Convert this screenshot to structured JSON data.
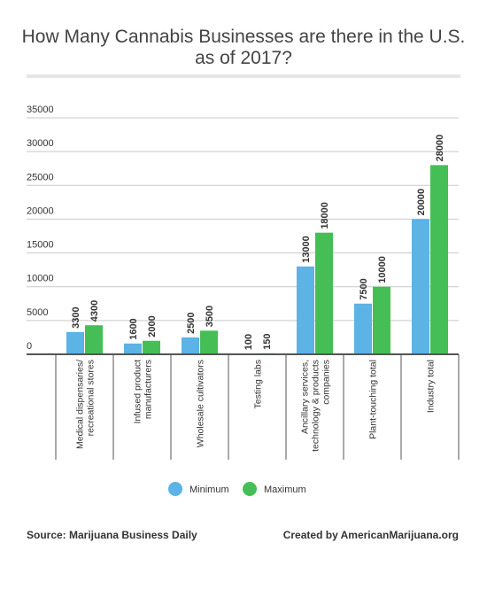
{
  "chart_data": {
    "type": "bar",
    "title": "How Many Cannabis Businesses are there in the U.S. as of 2017?",
    "categories": [
      "Medical dispensaries/ recreational stores",
      "Infused product manufacturers",
      "Wholesale cultivators",
      "Testing labs",
      "Ancillary services, technology & products companies",
      "Plant-touching total",
      "Industry total"
    ],
    "category_lines": [
      [
        "Medical dispensaries/",
        "recreational stores"
      ],
      [
        "Infused product",
        "manufacturers"
      ],
      [
        "Wholesale cultivators"
      ],
      [
        "Testing labs"
      ],
      [
        "Ancillary services,",
        "technology & products",
        "companies"
      ],
      [
        "Plant-touching total"
      ],
      [
        "Industry total"
      ]
    ],
    "series": [
      {
        "name": "Minimum",
        "color": "#5bb3e6",
        "values": [
          3300,
          1600,
          2500,
          100,
          13000,
          7500,
          20000
        ]
      },
      {
        "name": "Maximum",
        "color": "#45bf55",
        "values": [
          4300,
          2000,
          3500,
          150,
          18000,
          10000,
          28000
        ]
      }
    ],
    "yticks": [
      0,
      5000,
      10000,
      15000,
      20000,
      25000,
      30000,
      35000
    ],
    "ylim": [
      0,
      35000
    ],
    "xlabel": "",
    "ylabel": "",
    "grid": true,
    "legend": "bottom-center"
  },
  "footer": {
    "source": "Source: Marijuana Business Daily",
    "credit": "Created by AmericanMarijuana.org"
  }
}
